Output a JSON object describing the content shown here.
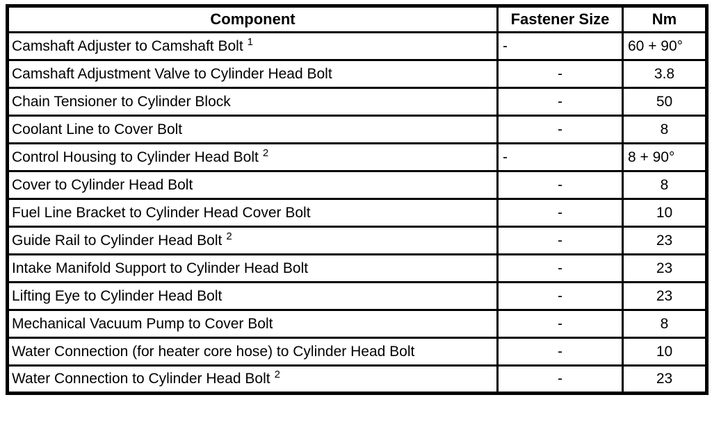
{
  "page": {
    "background_color": "#ffffff",
    "border_color": "#000000",
    "text_color": "#000000"
  },
  "table": {
    "headers": {
      "component": "Component",
      "fastener_size": "Fastener Size",
      "nm": "Nm"
    },
    "rows": [
      {
        "component": "Camshaft Adjuster to Camshaft Bolt",
        "superscript": "1",
        "fastener_size": "-",
        "nm": "60 + 90°",
        "value_align": "left"
      },
      {
        "component": "Camshaft Adjustment Valve to Cylinder Head Bolt",
        "superscript": "",
        "fastener_size": "-",
        "nm": "3.8",
        "value_align": "center"
      },
      {
        "component": "Chain Tensioner to Cylinder Block",
        "superscript": "",
        "fastener_size": "-",
        "nm": "50",
        "value_align": "center"
      },
      {
        "component": "Coolant Line to Cover Bolt",
        "superscript": "",
        "fastener_size": "-",
        "nm": "8",
        "value_align": "center"
      },
      {
        "component": "Control Housing to Cylinder Head Bolt",
        "superscript": "2",
        "fastener_size": "-",
        "nm": "8 + 90°",
        "value_align": "left"
      },
      {
        "component": "Cover to Cylinder Head Bolt",
        "superscript": "",
        "fastener_size": "-",
        "nm": "8",
        "value_align": "center"
      },
      {
        "component": "Fuel Line Bracket to Cylinder Head Cover Bolt",
        "superscript": "",
        "fastener_size": "-",
        "nm": "10",
        "value_align": "center"
      },
      {
        "component": "Guide Rail to Cylinder Head Bolt",
        "superscript": "2",
        "fastener_size": "-",
        "nm": "23",
        "value_align": "center"
      },
      {
        "component": "Intake Manifold Support to Cylinder Head Bolt",
        "superscript": "",
        "fastener_size": "-",
        "nm": "23",
        "value_align": "center"
      },
      {
        "component": "Lifting Eye to Cylinder Head Bolt",
        "superscript": "",
        "fastener_size": "-",
        "nm": "23",
        "value_align": "center"
      },
      {
        "component": "Mechanical Vacuum Pump to Cover Bolt",
        "superscript": "",
        "fastener_size": "-",
        "nm": "8",
        "value_align": "center"
      },
      {
        "component": "Water Connection (for heater core hose) to Cylinder Head Bolt",
        "superscript": "",
        "fastener_size": "-",
        "nm": "10",
        "value_align": "center"
      },
      {
        "component": "Water Connection to Cylinder Head Bolt",
        "superscript": "2",
        "fastener_size": "-",
        "nm": "23",
        "value_align": "center"
      }
    ]
  }
}
